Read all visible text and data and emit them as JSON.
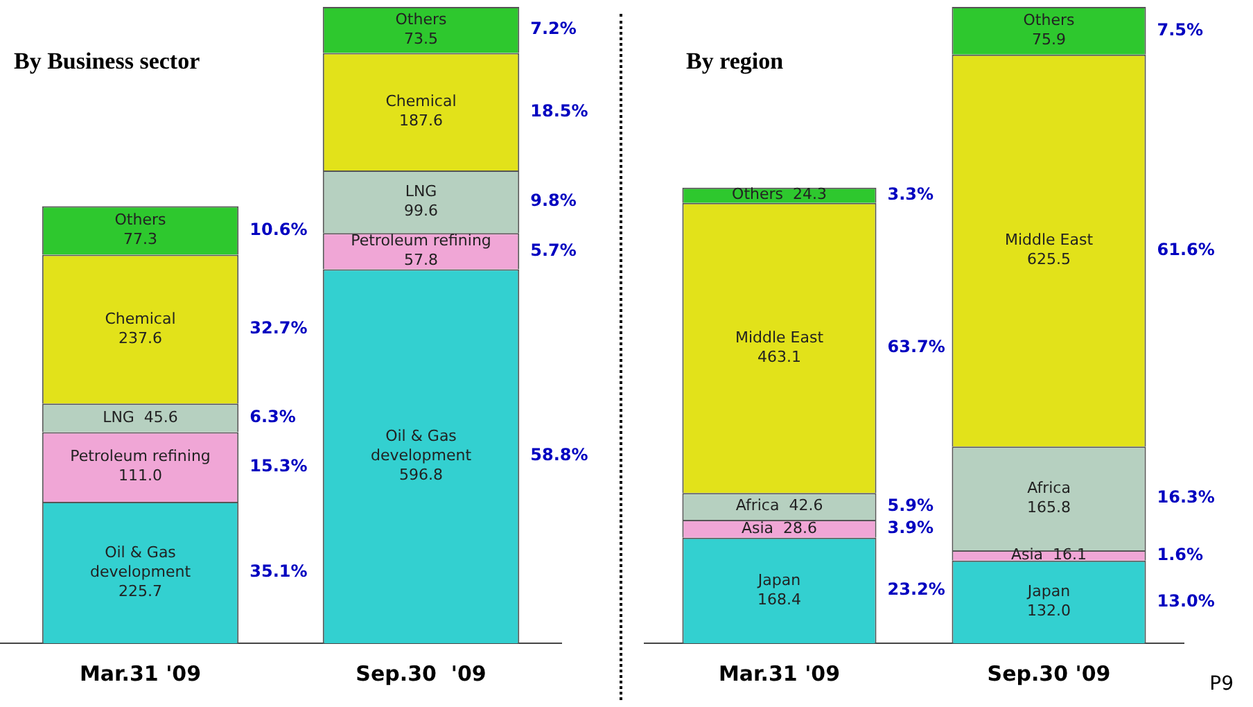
{
  "chart_data": [
    {
      "type": "bar",
      "title": "By Business sector",
      "stacked": true,
      "categories": [
        "Mar.31 '09",
        "Sep.30  '09"
      ],
      "series": [
        {
          "name": "Oil & Gas development",
          "color": "#33d0d0",
          "values": [
            225.7,
            596.8
          ],
          "value_labels": [
            "225.7",
            "596.8"
          ]
        },
        {
          "name": "Petroleum refining",
          "color": "#f0a6d6",
          "values": [
            111.0,
            57.8
          ],
          "value_labels": [
            "111.0",
            "57.8"
          ]
        },
        {
          "name": "LNG",
          "color": "#b6d0c0",
          "values": [
            45.6,
            99.6
          ],
          "value_labels": [
            "45.6",
            "99.6"
          ]
        },
        {
          "name": "Chemical",
          "color": "#e2e21a",
          "values": [
            237.6,
            187.6
          ],
          "value_labels": [
            "237.6",
            "187.6"
          ]
        },
        {
          "name": "Others",
          "color": "#2ec82e",
          "values": [
            77.3,
            73.5
          ],
          "value_labels": [
            "77.3",
            "73.5"
          ]
        }
      ],
      "annotations": [
        "10.6%",
        "32.7%",
        "6.3%",
        "15.3%",
        "35.1%",
        "7.2%",
        "18.5%",
        "9.8%",
        "5.7%",
        "58.8%"
      ]
    },
    {
      "type": "bar",
      "title": "By region",
      "stacked": true,
      "categories": [
        "Mar.31 '09",
        "Sep.30 '09"
      ],
      "series": [
        {
          "name": "Japan",
          "color": "#33d0d0",
          "values": [
            168.4,
            132.0
          ],
          "value_labels": [
            "168.4",
            "132.0"
          ]
        },
        {
          "name": "Asia",
          "color": "#f0a6d6",
          "values": [
            28.6,
            16.1
          ],
          "value_labels": [
            "28.6",
            "16.1"
          ]
        },
        {
          "name": "Africa",
          "color": "#b6d0c0",
          "values": [
            42.6,
            165.8
          ],
          "value_labels": [
            "42.6",
            "165.8"
          ]
        },
        {
          "name": "Middle East",
          "color": "#e2e21a",
          "values": [
            463.1,
            625.5
          ],
          "value_labels": [
            "463.1",
            "625.5"
          ]
        },
        {
          "name": "Others",
          "color": "#2ec82e",
          "values": [
            24.3,
            75.9
          ],
          "value_labels": [
            "24.3",
            "75.9"
          ]
        }
      ],
      "annotations": [
        "3.3%",
        "63.7%",
        "5.9%",
        "3.9%",
        "23.2%",
        "7.5%",
        "61.6%",
        "16.3%",
        "1.6%",
        "13.0%",
        "P9"
      ]
    }
  ]
}
